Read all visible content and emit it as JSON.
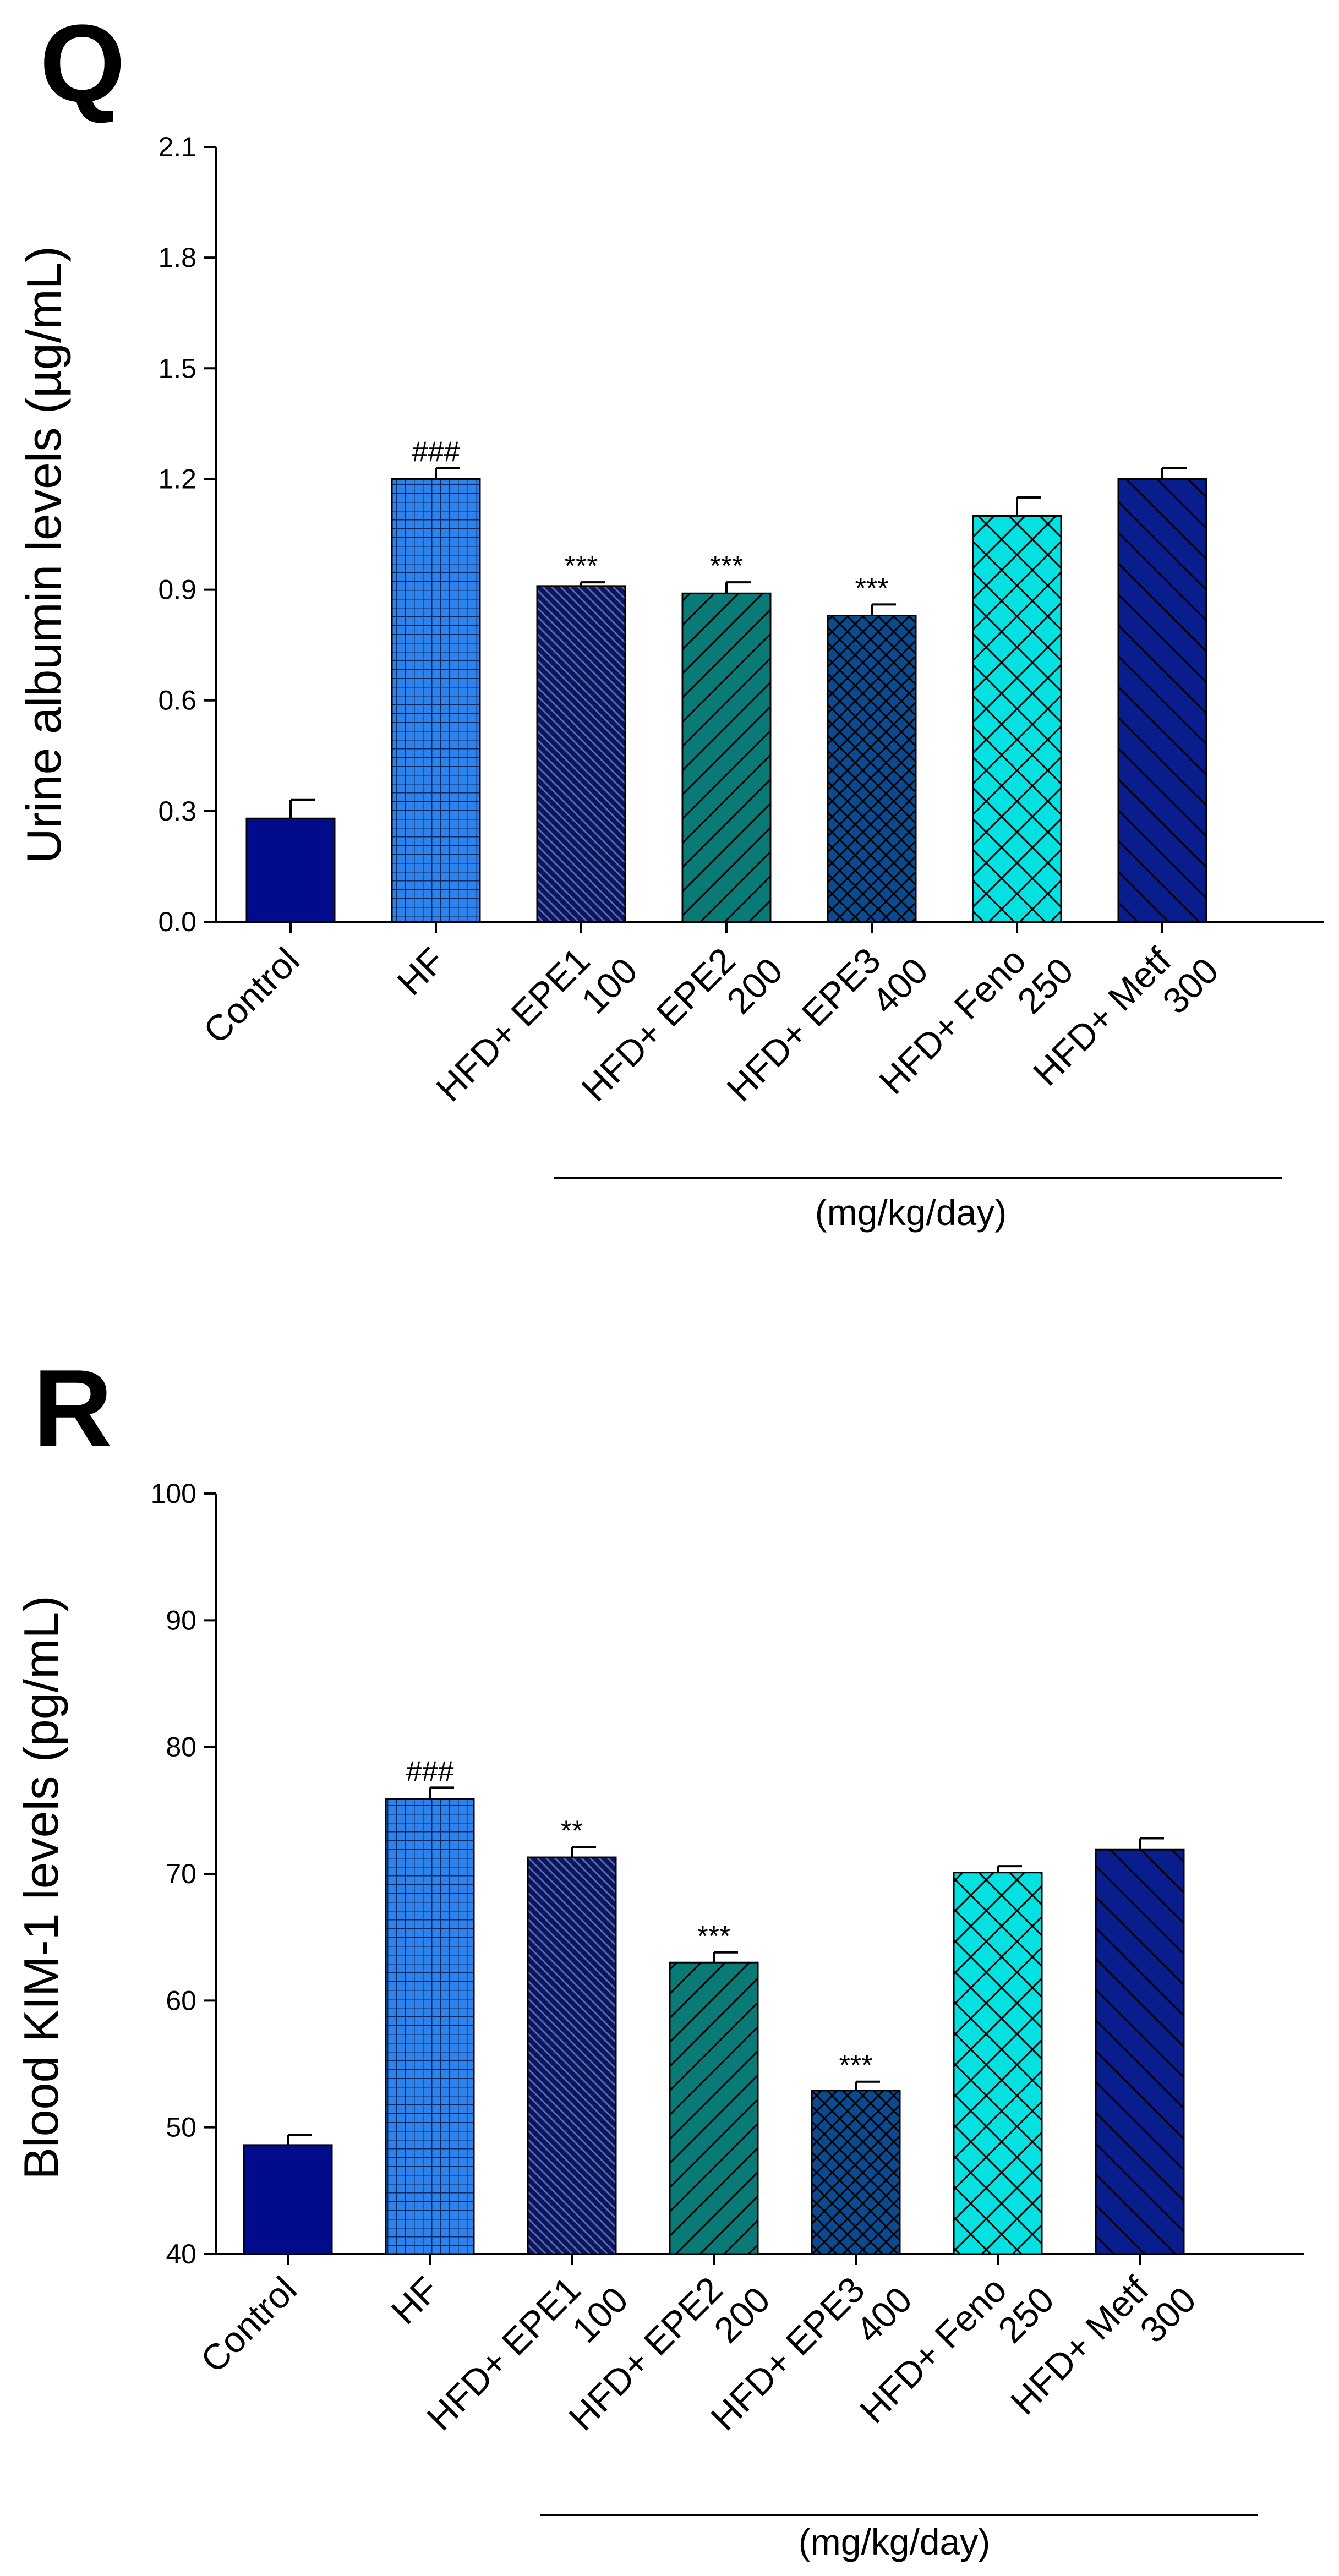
{
  "colors": {
    "control": "#000c8c",
    "hf": "#2d82ec",
    "epe1": "#0a1760",
    "epe2": "#0a7a77",
    "epe3": "#0b4a8e",
    "feno": "#05e0e0",
    "metf": "#0a1d8c",
    "axis": "#000000"
  },
  "chart_data": [
    {
      "panel": "Q",
      "type": "bar",
      "title": "",
      "xlabel": "",
      "ylabel": "Urine albumin levels (µg/mL)",
      "ylim": [
        0,
        2.1
      ],
      "yticks": [
        "0.0",
        "0.3",
        "0.6",
        "0.9",
        "1.2",
        "1.5",
        "1.8",
        "2.1"
      ],
      "ytick_values": [
        0,
        0.3,
        0.6,
        0.9,
        1.2,
        1.5,
        1.8,
        2.1
      ],
      "categories": [
        [
          "Control"
        ],
        [
          "HF"
        ],
        [
          "HFD+ EPE1",
          "100"
        ],
        [
          "HFD+ EPE2",
          "200"
        ],
        [
          "HFD+ EPE3",
          "400"
        ],
        [
          "HFD+ Feno",
          "250"
        ],
        [
          "HFD+ Metf",
          "300"
        ]
      ],
      "values": [
        0.28,
        1.2,
        0.91,
        0.89,
        0.83,
        1.1,
        1.2
      ],
      "errors": [
        0.05,
        0.03,
        0.01,
        0.03,
        0.03,
        0.05,
        0.03
      ],
      "significance": [
        "",
        "###",
        "***",
        "***",
        "***",
        "",
        ""
      ],
      "patterns": [
        "solid",
        "grid",
        "dense-diag-back",
        "diag-fwd",
        "crosshatch-dense",
        "crosshatch",
        "diag-back"
      ],
      "group_label": "(mg/kg/day)"
    },
    {
      "panel": "R",
      "type": "bar",
      "title": "",
      "xlabel": "",
      "ylabel": "Blood KIM-1 levels (pg/mL)",
      "ylim": [
        40,
        100
      ],
      "yticks": [
        "40",
        "50",
        "60",
        "70",
        "80",
        "90",
        "100"
      ],
      "ytick_values": [
        40,
        50,
        60,
        70,
        80,
        90,
        100
      ],
      "categories": [
        [
          "Control"
        ],
        [
          "HF"
        ],
        [
          "HFD+ EPE1",
          "100"
        ],
        [
          "HFD+ EPE2",
          "200"
        ],
        [
          "HFD+ EPE3",
          "400"
        ],
        [
          "HFD+ Feno",
          "250"
        ],
        [
          "HFD+ Metf",
          "300"
        ]
      ],
      "values": [
        48.6,
        75.9,
        71.3,
        63.0,
        52.9,
        70.1,
        71.9
      ],
      "errors": [
        0.8,
        0.9,
        0.8,
        0.8,
        0.7,
        0.5,
        0.9
      ],
      "significance": [
        "",
        "###",
        "**",
        "***",
        "***",
        "",
        ""
      ],
      "patterns": [
        "solid",
        "grid",
        "dense-diag-back",
        "diag-fwd",
        "crosshatch-dense",
        "crosshatch",
        "diag-back"
      ],
      "group_label": "(mg/kg/day)"
    }
  ]
}
